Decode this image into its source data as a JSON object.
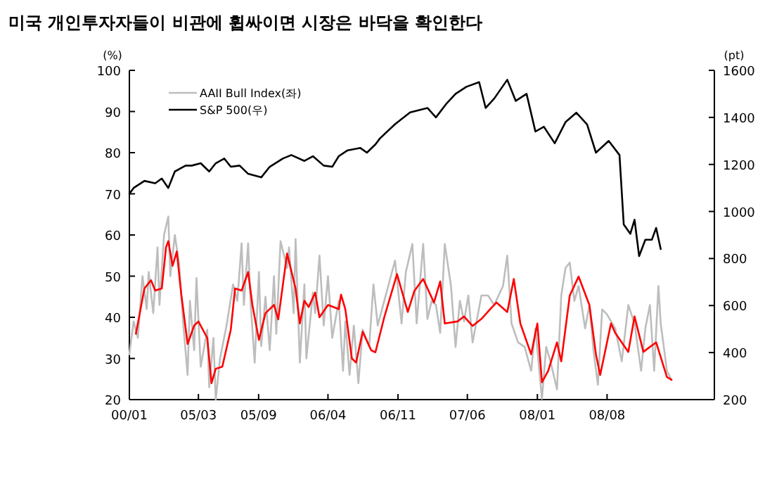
{
  "chart_data": {
    "type": "line",
    "title": "미국 개인투자자들이 비관에 휩싸이면 시장은 바닥을 확인한다",
    "ylabel": "(%)",
    "y2label": "(pt)",
    "xlim": [
      "2004-08-16",
      "2009-07-09"
    ],
    "xticks": [
      {
        "value": "2004-08-16",
        "label": "00/01"
      },
      {
        "value": "2005-03-15",
        "label": "05/03"
      },
      {
        "value": "2005-09-15",
        "label": "05/09"
      },
      {
        "value": "2006-04-15",
        "label": "06/04"
      },
      {
        "value": "2006-11-15",
        "label": "06/11"
      },
      {
        "value": "2007-06-15",
        "label": "07/06"
      },
      {
        "value": "2008-01-15",
        "label": "08/01"
      },
      {
        "value": "2008-08-15",
        "label": "08/08"
      }
    ],
    "ylim": [
      20,
      100
    ],
    "yticks": [
      20,
      30,
      40,
      50,
      60,
      70,
      80,
      90,
      100
    ],
    "y2lim": [
      200,
      1600
    ],
    "y2ticks": [
      200,
      400,
      600,
      800,
      1000,
      1200,
      1400,
      1600
    ],
    "grid": false,
    "legend": "top left",
    "line_style": "solid",
    "marker": "none",
    "series": [
      {
        "name": "AAII Bull Index(좌)",
        "color": "#bdbdbd",
        "x": [
          "2004-08-16",
          "2004-08-29",
          "2004-09-11",
          "2004-09-25",
          "2004-10-08",
          "2004-10-14",
          "2004-10-28",
          "2004-11-10",
          "2004-11-16",
          "2004-11-30",
          "2004-12-13",
          "2004-12-19",
          "2005-01-02",
          "2005-01-15",
          "2005-01-28",
          "2005-02-10",
          "2005-02-17",
          "2005-03-02",
          "2005-03-09",
          "2005-03-22",
          "2005-04-11",
          "2005-04-17",
          "2005-04-30",
          "2005-05-07",
          "2005-05-20",
          "2005-06-09",
          "2005-06-29",
          "2005-07-12",
          "2005-07-25",
          "2005-08-01",
          "2005-08-14",
          "2005-08-21",
          "2005-09-03",
          "2005-09-16",
          "2005-09-23",
          "2005-10-06",
          "2005-10-19",
          "2005-11-01",
          "2005-11-08",
          "2005-11-21",
          "2005-12-11",
          "2005-12-17",
          "2005-12-31",
          "2006-01-06",
          "2006-01-19",
          "2006-02-02",
          "2006-02-08",
          "2006-02-28",
          "2006-03-07",
          "2006-03-20",
          "2006-04-02",
          "2006-04-15",
          "2006-04-28",
          "2006-05-18",
          "2006-05-31",
          "2006-06-07",
          "2006-06-20",
          "2006-07-03",
          "2006-07-17",
          "2006-07-30",
          "2006-08-19",
          "2006-09-01",
          "2006-09-14",
          "2006-11-06",
          "2006-11-26",
          "2006-12-09",
          "2006-12-29",
          "2007-01-11",
          "2007-01-31",
          "2007-02-13",
          "2007-02-26",
          "2007-03-11",
          "2007-03-24",
          "2007-04-07",
          "2007-04-26",
          "2007-05-10",
          "2007-05-23",
          "2007-06-05",
          "2007-06-18",
          "2007-07-01",
          "2007-07-28",
          "2007-08-17",
          "2007-09-05",
          "2007-10-02",
          "2007-10-15",
          "2007-10-28",
          "2007-11-17",
          "2007-12-07",
          "2007-12-27",
          "2008-01-09",
          "2008-01-29",
          "2008-02-11",
          "2008-02-24",
          "2008-03-15",
          "2008-03-28",
          "2008-04-10",
          "2008-04-23",
          "2008-05-07",
          "2008-05-20",
          "2008-06-09",
          "2008-06-22",
          "2008-07-05",
          "2008-07-18",
          "2008-07-31",
          "2008-08-14",
          "2008-09-09",
          "2008-09-29",
          "2008-10-19",
          "2008-11-07",
          "2008-11-27",
          "2008-12-10",
          "2008-12-24",
          "2009-01-06",
          "2009-01-19",
          "2009-01-26",
          "2009-02-14",
          "2009-02-28"
        ],
        "values": [
          31,
          39,
          35,
          50,
          42,
          51,
          41,
          57,
          43,
          60,
          64.5,
          50,
          60,
          53,
          38,
          26,
          44,
          32,
          49.5,
          28,
          37,
          23,
          35,
          20,
          30,
          38,
          48,
          44,
          58,
          43,
          58,
          44,
          29,
          51,
          33,
          45,
          32,
          50,
          36,
          58.5,
          52,
          57,
          41,
          59,
          29,
          48,
          30,
          46,
          41,
          55,
          38,
          50,
          35,
          44,
          27,
          39,
          26,
          38,
          24,
          37,
          33,
          48,
          38,
          53.8,
          38.5,
          51,
          57.8,
          38.5,
          57.8,
          39.6,
          44,
          43,
          36.2,
          57.8,
          47.6,
          32.8,
          44,
          39,
          45.3,
          33.9,
          45.3,
          45.3,
          43,
          47.6,
          55,
          38.5,
          33.9,
          32.8,
          27,
          37.3,
          20.2,
          32.8,
          29.3,
          22.5,
          45.3,
          52,
          53.3,
          44,
          47.6,
          37.3,
          43,
          31.6,
          23.6,
          41.9,
          40.8,
          37.3,
          29.3,
          43,
          38.5,
          27,
          37.3,
          43,
          27,
          47.6,
          38.5,
          27,
          24.8
        ]
      },
      {
        "color": "#ff0000",
        "x": [
          "2004-09-05",
          "2004-10-01",
          "2004-10-21",
          "2004-11-03",
          "2004-11-23",
          "2004-12-06",
          "2004-12-13",
          "2004-12-26",
          "2005-01-08",
          "2005-01-21",
          "2005-02-10",
          "2005-03-02",
          "2005-03-15",
          "2005-04-11",
          "2005-04-24",
          "2005-05-07",
          "2005-05-27",
          "2005-06-22",
          "2005-07-05",
          "2005-07-25",
          "2005-08-14",
          "2005-08-27",
          "2005-09-16",
          "2005-10-06",
          "2005-11-01",
          "2005-11-14",
          "2005-12-11",
          "2006-01-06",
          "2006-01-19",
          "2006-02-02",
          "2006-02-15",
          "2006-03-07",
          "2006-03-20",
          "2006-04-15",
          "2006-05-18",
          "2006-05-25",
          "2006-06-07",
          "2006-06-27",
          "2006-07-10",
          "2006-07-30",
          "2006-08-25",
          "2006-09-07",
          "2006-10-04",
          "2006-11-12",
          "2006-12-15",
          "2007-01-04",
          "2007-01-31",
          "2007-03-05",
          "2007-03-24",
          "2007-04-07",
          "2007-05-16",
          "2007-06-05",
          "2007-07-01",
          "2007-07-28",
          "2007-08-23",
          "2007-09-12",
          "2007-10-15",
          "2007-11-04",
          "2007-11-24",
          "2007-12-27",
          "2008-01-15",
          "2008-01-29",
          "2008-02-17",
          "2008-03-15",
          "2008-03-28",
          "2008-04-23",
          "2008-05-20",
          "2008-06-22",
          "2008-07-12",
          "2008-07-25",
          "2008-08-27",
          "2008-09-09",
          "2008-09-29",
          "2008-10-19",
          "2008-11-07",
          "2008-12-04",
          "2008-12-24",
          "2009-01-12",
          "2009-02-14",
          "2009-02-28"
        ],
        "values": [
          36,
          47,
          49,
          46.5,
          47,
          57,
          58.5,
          52.5,
          56,
          46,
          33.5,
          38,
          39,
          35,
          24,
          27.5,
          28,
          37,
          47,
          46.5,
          51,
          43,
          34.5,
          41,
          43,
          39.5,
          55.5,
          47,
          38.5,
          44,
          42.5,
          46,
          40,
          43,
          42,
          45.5,
          42,
          30,
          29,
          36.5,
          32,
          31.5,
          40,
          50.5,
          41.3,
          46.4,
          49.3,
          43.6,
          48.7,
          38.5,
          39,
          40.2,
          37.9,
          39.6,
          41.9,
          43.6,
          41.3,
          49.3,
          38.5,
          31,
          38.5,
          24.2,
          27,
          33.9,
          29.3,
          45.3,
          49.9,
          43,
          31,
          26,
          38.5,
          36.2,
          33.9,
          31.6,
          40.2,
          31.6,
          32.8,
          33.9,
          25.5,
          24.8
        ]
      },
      {
        "name": "S&P 500(우)",
        "color": "#000000",
        "axis": "y2",
        "x": [
          "2004-08-16",
          "2004-08-29",
          "2004-10-01",
          "2004-11-03",
          "2004-11-23",
          "2004-12-13",
          "2005-01-02",
          "2005-02-04",
          "2005-02-23",
          "2005-03-22",
          "2005-04-17",
          "2005-05-07",
          "2005-06-02",
          "2005-06-22",
          "2005-07-19",
          "2005-08-14",
          "2005-09-23",
          "2005-10-19",
          "2005-11-28",
          "2005-12-24",
          "2006-02-02",
          "2006-02-28",
          "2006-04-02",
          "2006-04-28",
          "2006-05-18",
          "2006-06-14",
          "2006-07-23",
          "2006-08-12",
          "2006-09-07",
          "2006-09-21",
          "2006-11-06",
          "2006-12-22",
          "2007-02-13",
          "2007-03-11",
          "2007-04-13",
          "2007-05-10",
          "2007-06-12",
          "2007-07-21",
          "2007-08-10",
          "2007-09-05",
          "2007-10-15",
          "2007-11-10",
          "2007-12-13",
          "2008-01-09",
          "2008-02-04",
          "2008-03-08",
          "2008-04-10",
          "2008-05-13",
          "2008-06-15",
          "2008-07-12",
          "2008-08-20",
          "2008-09-22",
          "2008-10-05",
          "2008-10-25",
          "2008-11-07",
          "2008-11-21",
          "2008-12-10",
          "2008-12-30",
          "2009-01-12",
          "2009-01-26"
        ],
        "values": [
          1075,
          1100,
          1130,
          1120,
          1140,
          1100,
          1170,
          1195,
          1195,
          1205,
          1170,
          1205,
          1225,
          1190,
          1195,
          1160,
          1145,
          1190,
          1225,
          1240,
          1215,
          1235,
          1195,
          1190,
          1235,
          1260,
          1270,
          1250,
          1285,
          1311,
          1371,
          1421,
          1440,
          1400,
          1460,
          1500,
          1530,
          1550,
          1440,
          1480,
          1560,
          1470,
          1500,
          1340,
          1360,
          1290,
          1380,
          1420,
          1370,
          1250,
          1300,
          1240,
          945,
          905,
          965,
          810,
          880,
          880,
          930,
          840
        ]
      }
    ]
  }
}
